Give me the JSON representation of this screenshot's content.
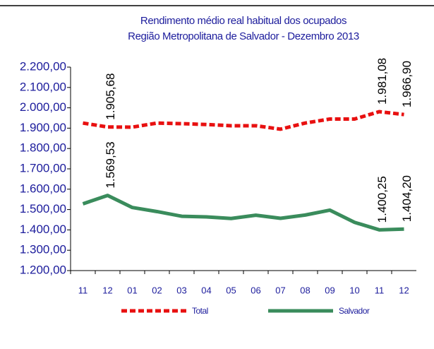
{
  "chart_data": {
    "type": "line",
    "title": "Rendimento médio real habitual dos ocupados",
    "subtitle": "Região Metropolitana de Salvador - Dezembro 2013",
    "categories": [
      "11",
      "12",
      "01",
      "02",
      "03",
      "04",
      "05",
      "06",
      "07",
      "08",
      "09",
      "10",
      "11",
      "12"
    ],
    "ylim": [
      1200,
      2200
    ],
    "yticks": [
      {
        "value": 1200,
        "label": "1.200,00"
      },
      {
        "value": 1300,
        "label": "1.300,00"
      },
      {
        "value": 1400,
        "label": "1.400,00"
      },
      {
        "value": 1500,
        "label": "1.500,00"
      },
      {
        "value": 1600,
        "label": "1.600,00"
      },
      {
        "value": 1700,
        "label": "1.700,00"
      },
      {
        "value": 1800,
        "label": "1.800,00"
      },
      {
        "value": 1900,
        "label": "1.900,00"
      },
      {
        "value": 2000,
        "label": "2.000,00"
      },
      {
        "value": 2100,
        "label": "2.100,00"
      },
      {
        "value": 2200,
        "label": "2.200,00"
      }
    ],
    "series": [
      {
        "name": "Total",
        "color": "#e81010",
        "dashed": true,
        "values": [
          1925,
          1905.68,
          1905,
          1925,
          1922,
          1918,
          1912,
          1912,
          1895,
          1925,
          1945,
          1945,
          1981.08,
          1966.9
        ],
        "value_labels": [
          null,
          "1.905,68",
          null,
          null,
          null,
          null,
          null,
          null,
          null,
          null,
          null,
          null,
          "1.981,08",
          "1.966,90"
        ]
      },
      {
        "name": "Salvador",
        "color": "#3a8c5c",
        "dashed": false,
        "values": [
          1528,
          1569.53,
          1510,
          1490,
          1467,
          1464,
          1456,
          1472,
          1457,
          1473,
          1497,
          1437,
          1400.25,
          1404.2
        ],
        "value_labels": [
          null,
          "1.569,53",
          null,
          null,
          null,
          null,
          null,
          null,
          null,
          null,
          null,
          null,
          "1.400,25",
          "1.404,20"
        ]
      }
    ]
  }
}
